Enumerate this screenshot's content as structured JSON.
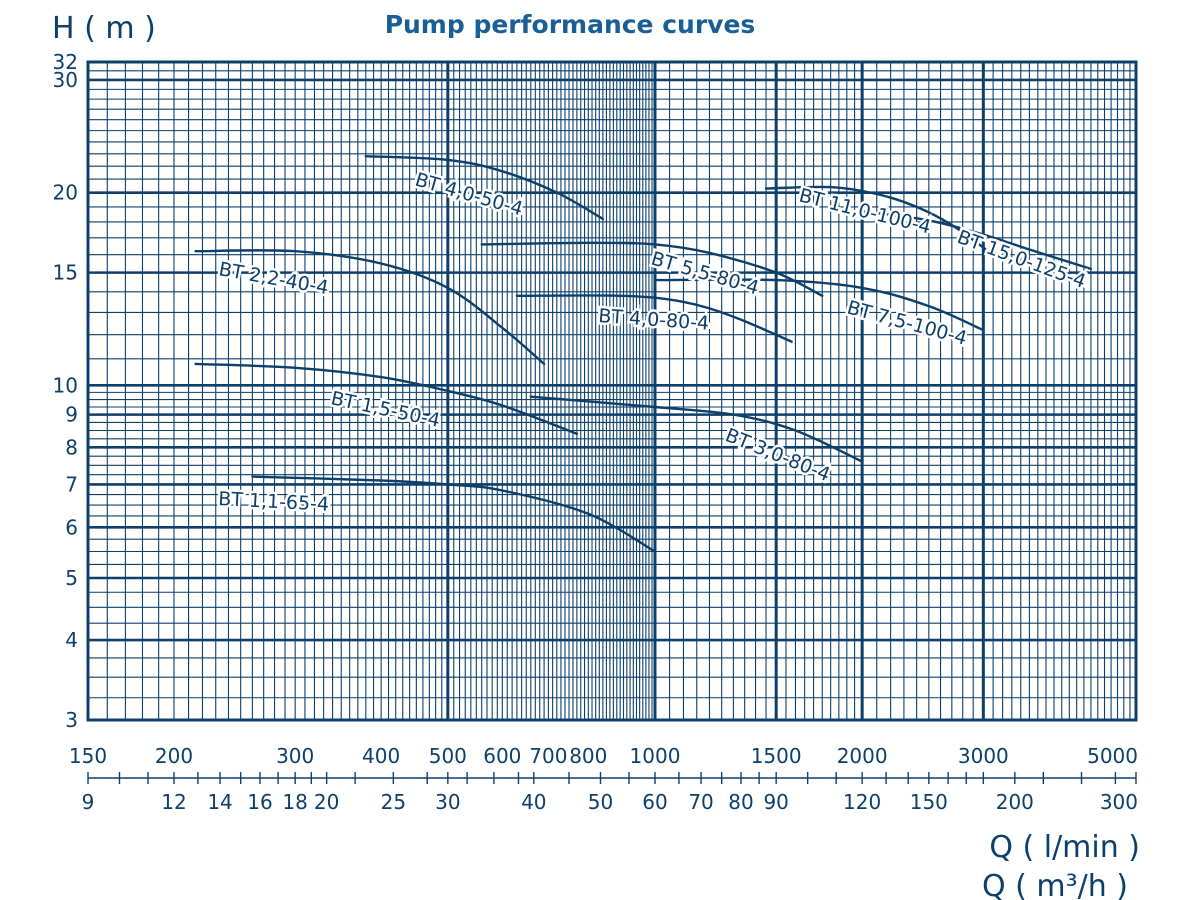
{
  "chart_data": {
    "type": "line",
    "title": "Pump performance curves",
    "ylabel": "H ( m )",
    "xlabel": "Q ( l/min )",
    "xlabel2": "Q ( m³/h )",
    "x_scale": "log",
    "y_scale": "log",
    "xlim": [
      150,
      5000
    ],
    "ylim": [
      3,
      32
    ],
    "grid": true,
    "colors": {
      "line": "#0d3f6b",
      "text": "#0d3f6b",
      "title": "#1a5e96"
    },
    "y_ticks": [
      "32",
      "30",
      "20",
      "15",
      "10",
      "9",
      "8",
      "7",
      "6",
      "5",
      "4",
      "3"
    ],
    "x_ticks_lmin": [
      "150",
      "200",
      "300",
      "400",
      "500",
      "600",
      "700",
      "800",
      "1000",
      "1500",
      "2000",
      "3000",
      "5000"
    ],
    "x_ticks_m3h": [
      "9",
      "12",
      "14",
      "16",
      "18",
      "20",
      "25",
      "30",
      "40",
      "50",
      "60",
      "70",
      "80",
      "90",
      "120",
      "150",
      "200",
      "300"
    ],
    "series": [
      {
        "name": "BT 4,0-50-4",
        "x": [
          380,
          500,
          600,
          720,
          840
        ],
        "y": [
          22.8,
          22.5,
          21.6,
          20.0,
          18.2
        ]
      },
      {
        "name": "BT 2,2-40-4",
        "x": [
          215,
          300,
          400,
          500,
          600,
          690
        ],
        "y": [
          16.2,
          16.2,
          15.5,
          14.2,
          12.3,
          10.8
        ]
      },
      {
        "name": "BT 1,5-50-4",
        "x": [
          215,
          300,
          400,
          500,
          600,
          770
        ],
        "y": [
          10.8,
          10.65,
          10.3,
          9.8,
          9.3,
          8.4
        ]
      },
      {
        "name": "BT 1,1-65-4",
        "x": [
          260,
          400,
          500,
          600,
          800,
          1000
        ],
        "y": [
          7.2,
          7.1,
          7.0,
          6.85,
          6.3,
          5.5
        ]
      },
      {
        "name": "BT 5,5-80-4",
        "x": [
          560,
          800,
          1000,
          1200,
          1500,
          1750
        ],
        "y": [
          16.6,
          16.7,
          16.6,
          16.1,
          15.0,
          13.8
        ]
      },
      {
        "name": "BT 4,0-80-4",
        "x": [
          630,
          900,
          1100,
          1300,
          1580
        ],
        "y": [
          13.8,
          13.8,
          13.5,
          12.8,
          11.7
        ]
      },
      {
        "name": "BT 3,0-80-4",
        "x": [
          660,
          1000,
          1300,
          1600,
          2000
        ],
        "y": [
          9.6,
          9.25,
          9.0,
          8.5,
          7.6
        ]
      },
      {
        "name": "BT 11,0-100-4",
        "x": [
          1450,
          1800,
          2100,
          2400,
          2700,
          3050
        ],
        "y": [
          20.3,
          20.4,
          19.9,
          19.0,
          17.8,
          16.2
        ]
      },
      {
        "name": "BT 15,0-125-4",
        "x": [
          2000,
          2500,
          3000,
          3500,
          4300
        ],
        "y": [
          18.7,
          18.1,
          17.2,
          16.3,
          15.2
        ]
      },
      {
        "name": "BT 7,5-100-4",
        "x": [
          1000,
          1500,
          2000,
          2500,
          3000
        ],
        "y": [
          14.6,
          14.6,
          14.2,
          13.3,
          12.2
        ]
      }
    ]
  }
}
